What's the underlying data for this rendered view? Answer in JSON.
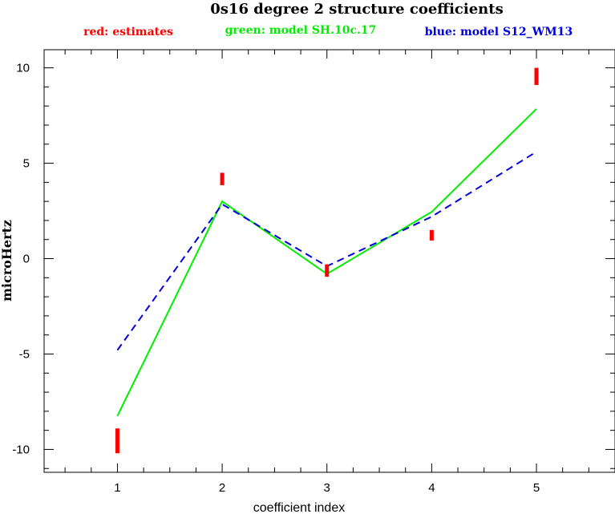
{
  "chart_data": {
    "type": "line",
    "title": "0s16 degree 2 structure coefficients",
    "xlabel": "coefficient index",
    "ylabel": "microHertz",
    "xlim": [
      0.3,
      5.75
    ],
    "ylim": [
      -11.2,
      10.95
    ],
    "x_ticks": [
      1,
      2,
      3,
      4,
      5
    ],
    "y_ticks": [
      -10,
      -5,
      0,
      5,
      10
    ],
    "grid": false,
    "legend": [
      {
        "label": "red: estimates",
        "color": "#ff0000"
      },
      {
        "label": "green: model SH.10c.17",
        "color": "#00ee00"
      },
      {
        "label": "blue: model S12_WM13",
        "color": "#0000dd"
      }
    ],
    "estimates": {
      "name": "red: estimates",
      "color": "#ff0000",
      "x": [
        1,
        2,
        3,
        4,
        5
      ],
      "low": [
        -10.2,
        3.85,
        -0.95,
        0.95,
        9.1
      ],
      "high": [
        -8.9,
        4.5,
        -0.3,
        1.5,
        10.0
      ]
    },
    "series": [
      {
        "name": "green: model SH.10c.17",
        "color": "#00ee00",
        "style": "solid",
        "x": [
          1,
          2,
          3,
          4,
          5
        ],
        "values": [
          -8.25,
          3.0,
          -0.8,
          2.45,
          7.85
        ]
      },
      {
        "name": "blue: model S12_WM13",
        "color": "#0000dd",
        "style": "dashed",
        "x": [
          1,
          2,
          3,
          4,
          5
        ],
        "values": [
          -4.8,
          2.85,
          -0.4,
          2.2,
          5.6
        ]
      }
    ]
  }
}
